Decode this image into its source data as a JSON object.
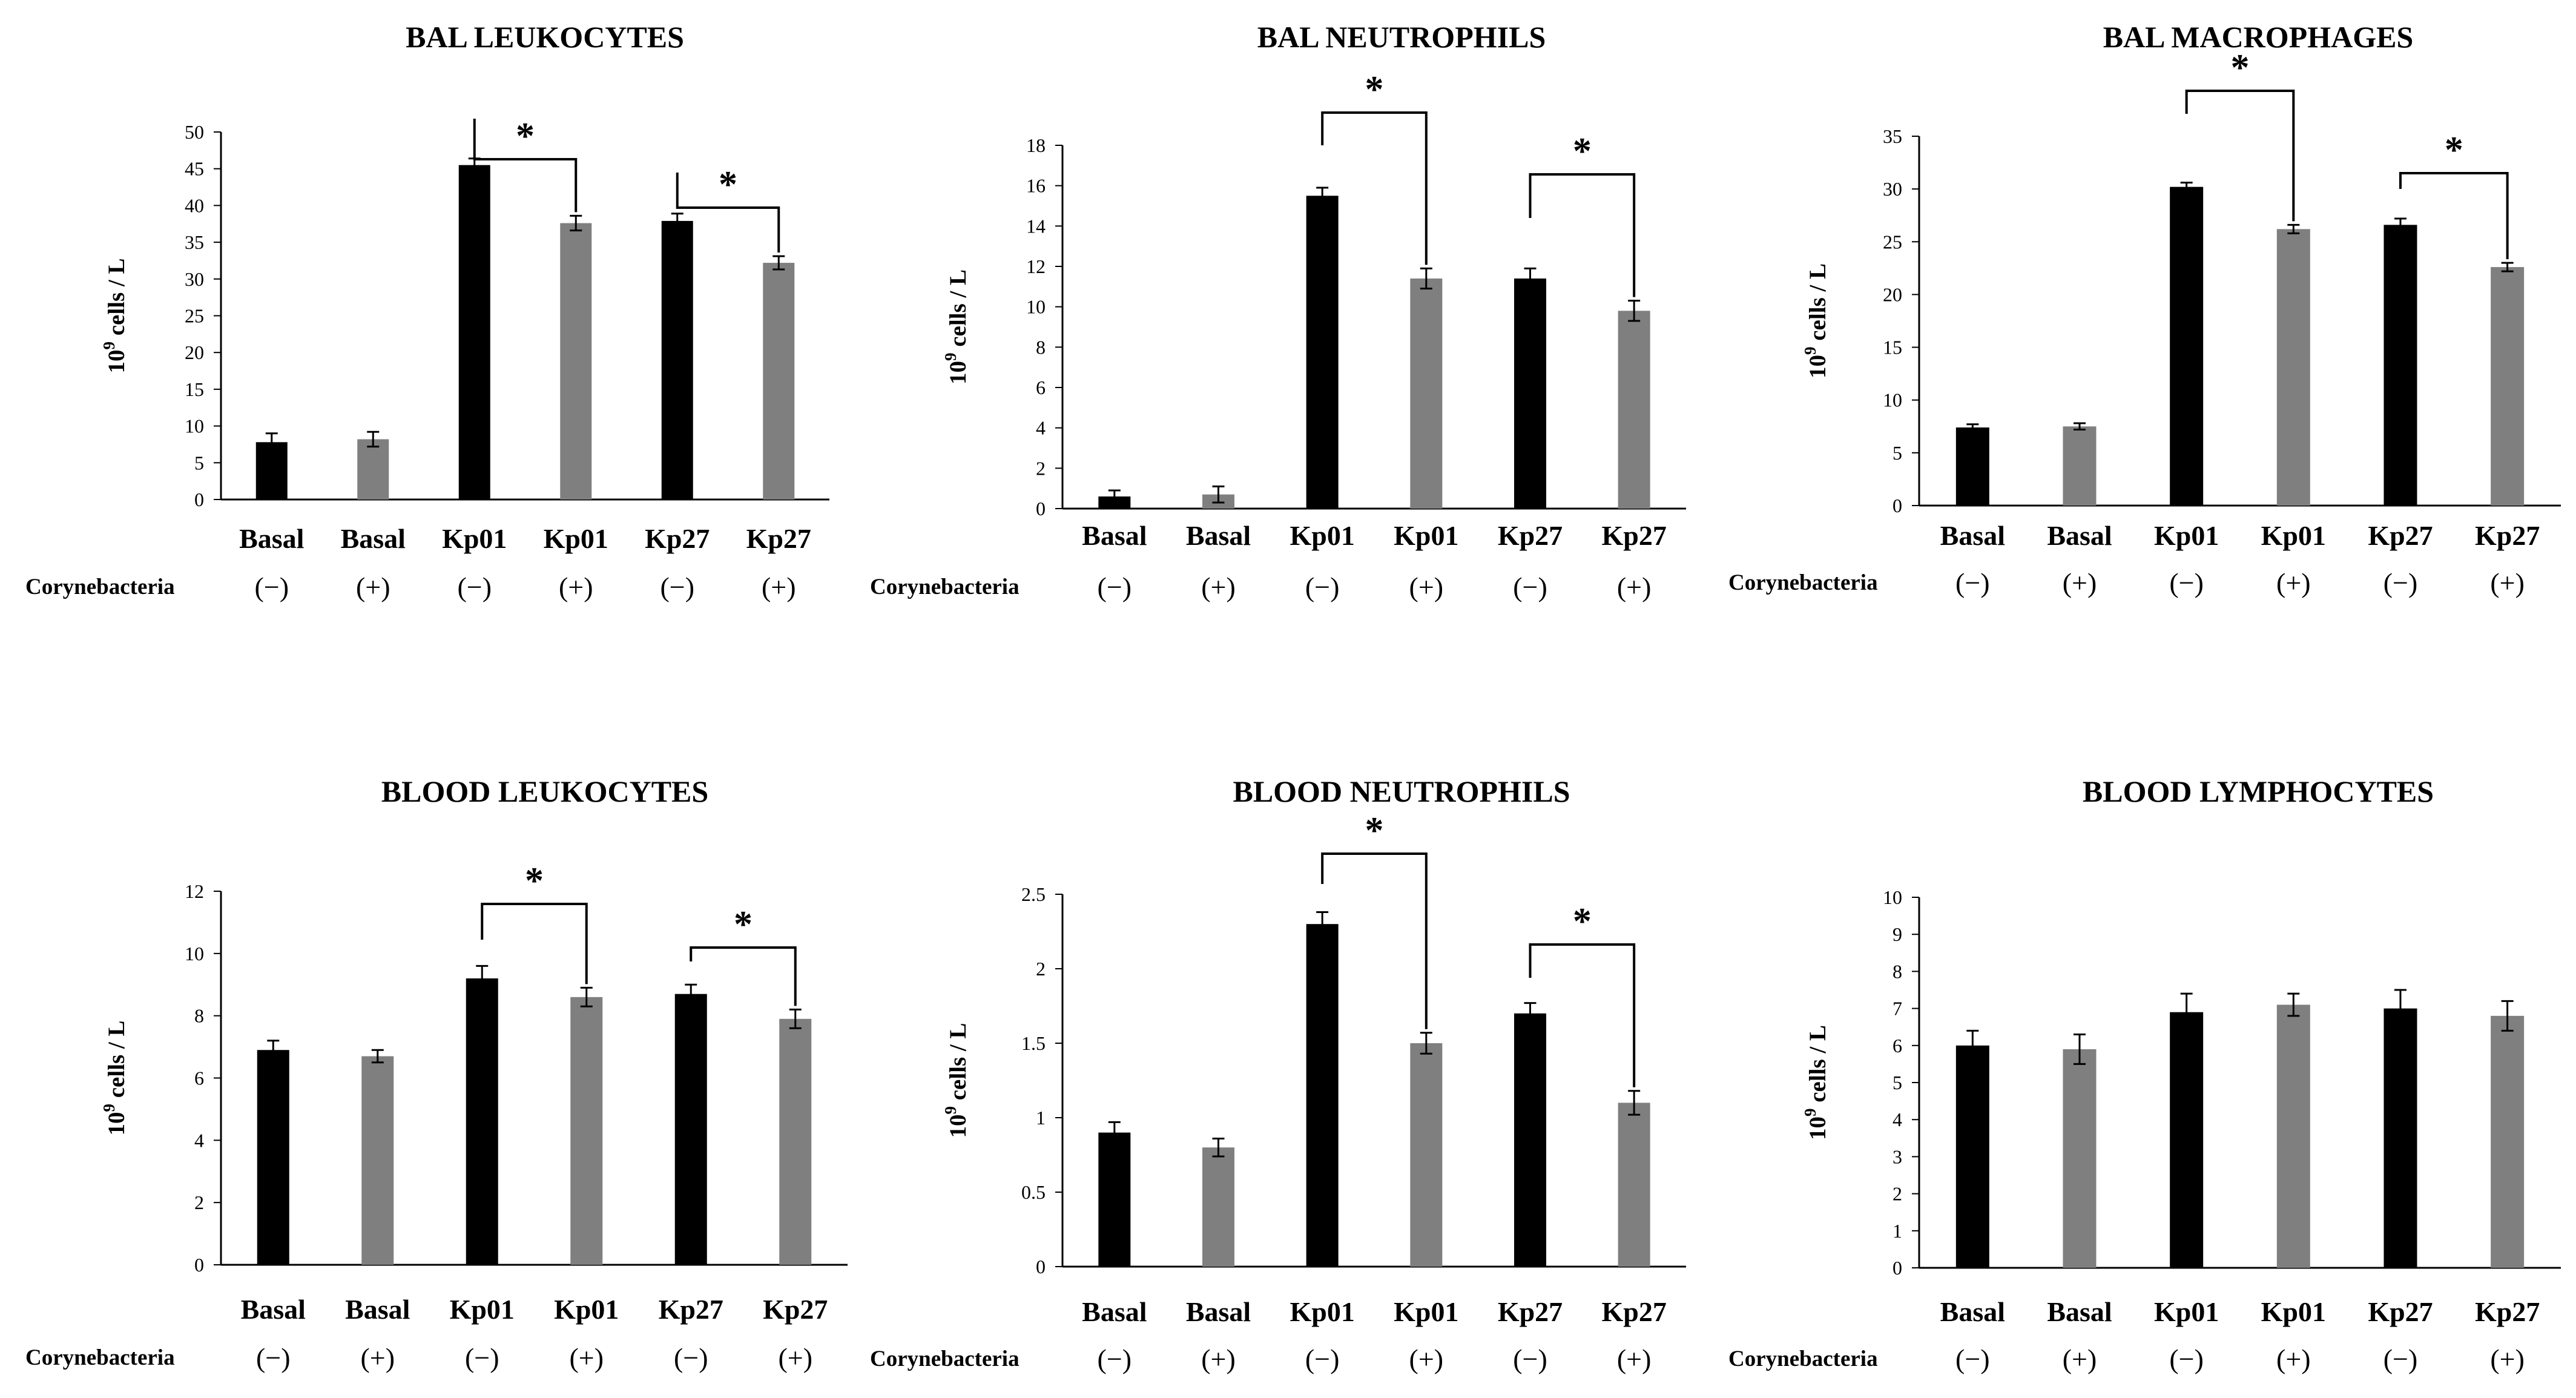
{
  "figure": {
    "colors": {
      "negative": "#000000",
      "positive": "#7f7f7f",
      "axis": "#000000"
    },
    "row_label": "Corynebacteria",
    "y_unit": "cells / L",
    "y_base": "10",
    "y_exp": "9"
  },
  "chart_data": [
    {
      "type": "bar",
      "title": "BAL LEUKOCYTES",
      "ylabel": "10^9 cells / L",
      "ylim": [
        0,
        50
      ],
      "yticks": [
        0,
        5,
        10,
        15,
        20,
        25,
        30,
        35,
        40,
        45,
        50
      ],
      "categories": [
        "Basal",
        "Basal",
        "Kp01",
        "Kp01",
        "Kp27",
        "Kp27"
      ],
      "conditions": [
        "(−)",
        "(+)",
        "(−)",
        "(+)",
        "(−)",
        "(+)"
      ],
      "values": [
        7.8,
        8.2,
        45.5,
        37.6,
        37.9,
        32.2
      ],
      "errors": [
        1.2,
        1.0,
        0.9,
        1.0,
        1.0,
        0.9
      ],
      "significance": [
        {
          "from": 2,
          "to": 3,
          "label": "*"
        },
        {
          "from": 4,
          "to": 5,
          "label": "*"
        }
      ]
    },
    {
      "type": "bar",
      "title": "BAL NEUTROPHILS",
      "ylabel": "10^9 cells / L",
      "ylim": [
        0,
        18
      ],
      "yticks": [
        0,
        2,
        4,
        6,
        8,
        10,
        12,
        14,
        16,
        18
      ],
      "categories": [
        "Basal",
        "Basal",
        "Kp01",
        "Kp01",
        "Kp27",
        "Kp27"
      ],
      "conditions": [
        "(−)",
        "(+)",
        "(−)",
        "(+)",
        "(−)",
        "(+)"
      ],
      "values": [
        0.6,
        0.7,
        15.5,
        11.4,
        11.4,
        9.8
      ],
      "errors": [
        0.3,
        0.4,
        0.4,
        0.5,
        0.5,
        0.5
      ],
      "significance": [
        {
          "from": 2,
          "to": 3,
          "label": "*"
        },
        {
          "from": 4,
          "to": 5,
          "label": "*"
        }
      ]
    },
    {
      "type": "bar",
      "title": "BAL MACROPHAGES",
      "ylabel": "10^9 cells / L",
      "ylim": [
        0,
        35
      ],
      "yticks": [
        0,
        5,
        10,
        15,
        20,
        25,
        30,
        35
      ],
      "categories": [
        "Basal",
        "Basal",
        "Kp01",
        "Kp01",
        "Kp27",
        "Kp27"
      ],
      "conditions": [
        "(−)",
        "(+)",
        "(−)",
        "(+)",
        "(−)",
        "(+)"
      ],
      "values": [
        7.4,
        7.5,
        30.2,
        26.2,
        26.6,
        22.6
      ],
      "errors": [
        0.3,
        0.3,
        0.4,
        0.4,
        0.6,
        0.4
      ],
      "significance": [
        {
          "from": 2,
          "to": 3,
          "label": "*"
        },
        {
          "from": 4,
          "to": 5,
          "label": "*"
        }
      ]
    },
    {
      "type": "bar",
      "title": "BLOOD LEUKOCYTES",
      "ylabel": "10^9 cells / L",
      "ylim": [
        0,
        12
      ],
      "yticks": [
        0,
        2,
        4,
        6,
        8,
        10,
        12
      ],
      "categories": [
        "Basal",
        "Basal",
        "Kp01",
        "Kp01",
        "Kp27",
        "Kp27"
      ],
      "conditions": [
        "(−)",
        "(+)",
        "(−)",
        "(+)",
        "(−)",
        "(+)"
      ],
      "values": [
        6.9,
        6.7,
        9.2,
        8.6,
        8.7,
        7.9
      ],
      "errors": [
        0.3,
        0.2,
        0.4,
        0.3,
        0.3,
        0.3
      ],
      "significance": [
        {
          "from": 2,
          "to": 3,
          "label": "*"
        },
        {
          "from": 4,
          "to": 5,
          "label": "*"
        }
      ]
    },
    {
      "type": "bar",
      "title": "BLOOD NEUTROPHILS",
      "ylabel": "10^9 cells / L",
      "ylim": [
        0,
        2.5
      ],
      "yticks": [
        0,
        0.5,
        1,
        1.5,
        2,
        2.5
      ],
      "categories": [
        "Basal",
        "Basal",
        "Kp01",
        "Kp01",
        "Kp27",
        "Kp27"
      ],
      "conditions": [
        "(−)",
        "(+)",
        "(−)",
        "(+)",
        "(−)",
        "(+)"
      ],
      "values": [
        0.9,
        0.8,
        2.3,
        1.5,
        1.7,
        1.1
      ],
      "errors": [
        0.07,
        0.06,
        0.08,
        0.07,
        0.07,
        0.08
      ],
      "significance": [
        {
          "from": 2,
          "to": 3,
          "label": "*"
        },
        {
          "from": 4,
          "to": 5,
          "label": "*"
        }
      ]
    },
    {
      "type": "bar",
      "title": "BLOOD LYMPHOCYTES",
      "ylabel": "10^9 cells / L",
      "ylim": [
        0,
        10
      ],
      "yticks": [
        0,
        1,
        2,
        3,
        4,
        5,
        6,
        7,
        8,
        9,
        10
      ],
      "categories": [
        "Basal",
        "Basal",
        "Kp01",
        "Kp01",
        "Kp27",
        "Kp27"
      ],
      "conditions": [
        "(−)",
        "(+)",
        "(−)",
        "(+)",
        "(−)",
        "(+)"
      ],
      "values": [
        6.0,
        5.9,
        6.9,
        7.1,
        7.0,
        6.8
      ],
      "errors": [
        0.4,
        0.4,
        0.5,
        0.3,
        0.5,
        0.4
      ],
      "significance": []
    }
  ]
}
